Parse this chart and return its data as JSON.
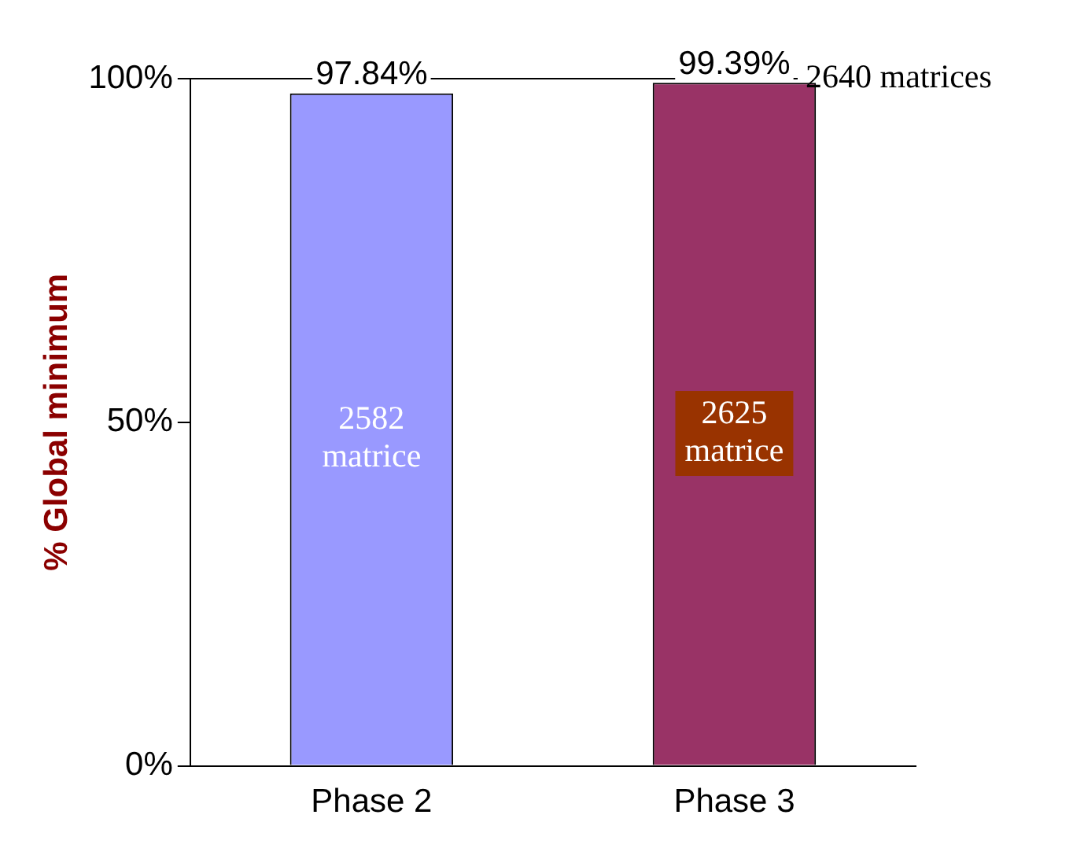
{
  "chart_data": {
    "type": "bar",
    "ylabel": "% Global minimum",
    "categories": [
      "Phase 2",
      "Phase 3"
    ],
    "values": [
      97.84,
      99.39
    ],
    "colors": [
      "#9999ff",
      "#993366"
    ],
    "value_labels": [
      "97.84%",
      "99.39%"
    ],
    "ylim": [
      0,
      100
    ],
    "yticks": [
      {
        "value": 0,
        "label": "0%"
      },
      {
        "value": 50,
        "label": "50%"
      },
      {
        "value": 100,
        "label": "100%"
      }
    ],
    "grid": false,
    "legend": false,
    "ref_lines": [
      {
        "axis": "y",
        "value": 100,
        "label": "2640 matrices",
        "color": "#000000"
      }
    ],
    "annotations": [
      "2582\nmatrice",
      "2625\nmatrice"
    ]
  }
}
